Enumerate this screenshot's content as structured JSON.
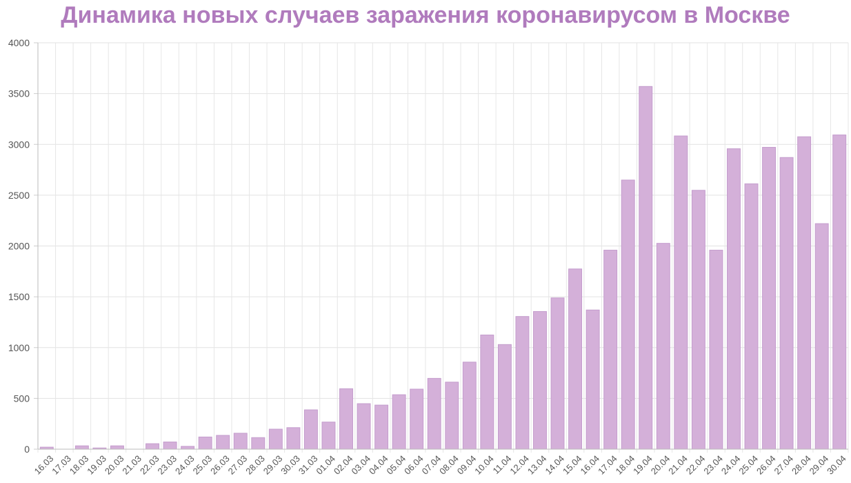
{
  "page": {
    "title": "Динамика новых случаев заражения коронавирусом в Москве"
  },
  "chart_data": {
    "type": "bar",
    "title": "Динамика новых случаев заражения коронавирусом в Москве",
    "xlabel": "",
    "ylabel": "",
    "ylim": [
      0,
      4000
    ],
    "yticks": [
      0,
      500,
      1000,
      1500,
      2000,
      2500,
      3000,
      3500,
      4000
    ],
    "grid": true,
    "bar_color": "#d4b0d9",
    "bar_border_color": "#c49ccd",
    "categories": [
      "16.03",
      "17.03",
      "18.03",
      "19.03",
      "20.03",
      "21.03",
      "22.03",
      "23.03",
      "24.03",
      "25.03",
      "26.03",
      "27.03",
      "28.03",
      "29.03",
      "30.03",
      "31.03",
      "01.04",
      "02.04",
      "03.04",
      "04.04",
      "05.04",
      "06.04",
      "07.04",
      "08.04",
      "09.04",
      "10.04",
      "11.04",
      "12.04",
      "13.04",
      "14.04",
      "15.04",
      "16.04",
      "17.04",
      "18.04",
      "19.04",
      "20.04",
      "21.04",
      "22.04",
      "23.04",
      "24.04",
      "25.04",
      "26.04",
      "27.04",
      "28.04",
      "29.04",
      "30.04"
    ],
    "values": [
      20,
      0,
      33,
      12,
      33,
      0,
      54,
      71,
      28,
      120,
      136,
      157,
      114,
      197,
      212,
      387,
      267,
      595,
      448,
      434,
      536,
      591,
      697,
      660,
      857,
      1124,
      1030,
      1306,
      1355,
      1489,
      1774,
      1370,
      1959,
      2649,
      3570,
      2026,
      3083,
      2548,
      1959,
      2957,
      2612,
      2971,
      2871,
      3075,
      2220,
      3093
    ]
  }
}
